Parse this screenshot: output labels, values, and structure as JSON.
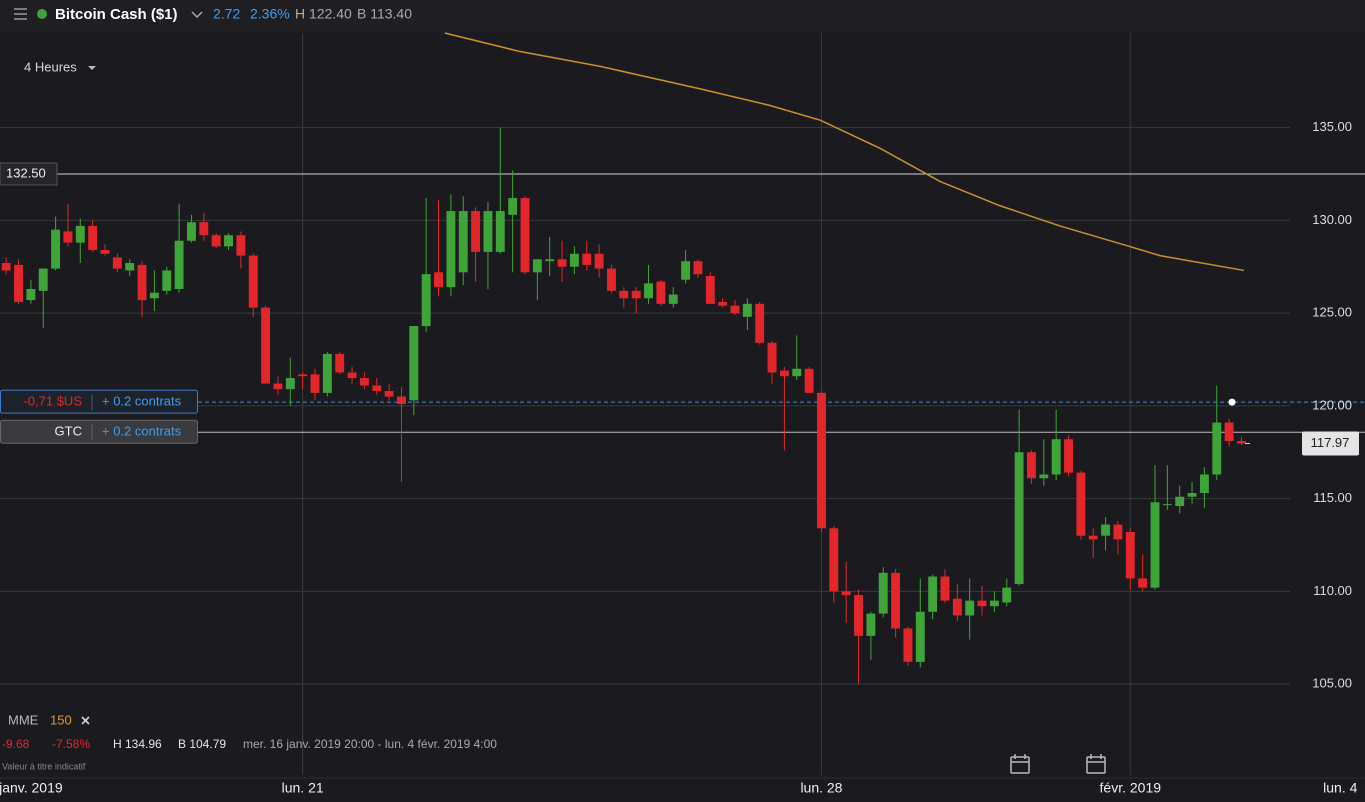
{
  "header": {
    "title": "Bitcoin Cash ($1)",
    "change": "2.72",
    "change_pct": "2.36%",
    "high": "H 122.40",
    "low": "B 113.40",
    "interval": "4 Heures"
  },
  "footer": {
    "indicator": "MME",
    "period": "150",
    "change": "-9.68",
    "change_pct": "-7.58%",
    "high": "H 134.96",
    "low": "B 104.79",
    "range": "mer. 16 janv. 2019 20:00 - lun. 4 févr. 2019 4:00",
    "note": "Valeur à titre indicatif"
  },
  "chart_data": {
    "type": "candlestick",
    "up_color": "#3fa53b",
    "down_color": "#e3262b",
    "x": [
      0,
      1,
      2,
      3,
      4,
      5,
      6,
      7,
      8,
      9,
      10,
      11,
      12,
      13,
      14,
      15,
      16,
      17,
      18,
      19,
      20,
      21,
      22,
      23,
      24,
      25,
      26,
      27,
      28,
      29,
      30,
      31,
      32,
      33,
      34,
      35,
      36,
      37,
      38,
      39,
      40,
      41,
      42,
      43,
      44,
      45,
      46,
      47,
      48,
      49,
      50,
      51,
      52,
      53,
      54,
      55,
      56,
      57,
      58,
      59,
      60,
      61,
      62,
      63,
      64,
      65,
      66,
      67,
      68,
      69,
      70,
      71,
      72,
      73,
      74,
      75,
      76,
      77,
      78,
      79,
      80,
      81,
      82,
      83,
      84,
      85,
      86,
      87,
      88,
      89,
      90,
      91,
      92,
      93,
      94,
      95,
      96,
      97,
      98,
      99,
      100
    ],
    "open": [
      127.7,
      127.6,
      125.7,
      126.2,
      127.4,
      129.4,
      128.8,
      129.7,
      128.4,
      128.0,
      127.3,
      127.6,
      125.8,
      126.2,
      126.3,
      128.9,
      129.9,
      129.2,
      128.6,
      129.2,
      128.1,
      125.3,
      121.2,
      120.9,
      121.7,
      121.7,
      120.7,
      122.8,
      121.8,
      121.5,
      121.1,
      120.8,
      120.5,
      120.3,
      124.3,
      127.2,
      126.4,
      127.2,
      130.5,
      128.3,
      128.3,
      130.3,
      131.2,
      127.2,
      127.8,
      127.9,
      127.5,
      128.2,
      128.2,
      127.4,
      126.2,
      126.2,
      125.8,
      126.7,
      125.5,
      126.8,
      127.8,
      127.0,
      125.6,
      125.4,
      124.8,
      125.5,
      123.4,
      121.9,
      121.6,
      122.0,
      120.7,
      113.4,
      110.0,
      109.8,
      107.6,
      108.8,
      111.0,
      108.0,
      106.2,
      108.9,
      110.8,
      109.6,
      108.7,
      109.5,
      109.2,
      109.4,
      110.4,
      117.5,
      116.1,
      116.3,
      118.2,
      116.4,
      113.0,
      113.0,
      113.6,
      113.2,
      110.7,
      110.2,
      114.7,
      114.6,
      115.1,
      115.3,
      116.3,
      119.1,
      118.1
    ],
    "high": [
      128.0,
      127.9,
      126.8,
      127.4,
      130.2,
      130.9,
      130.1,
      130.0,
      128.7,
      128.2,
      127.9,
      127.8,
      127.3,
      127.5,
      130.9,
      130.3,
      130.4,
      129.3,
      129.3,
      129.4,
      128.2,
      125.4,
      121.6,
      122.6,
      121.8,
      122.0,
      122.9,
      122.9,
      122.1,
      121.8,
      121.5,
      121.2,
      121.0,
      124.3,
      131.2,
      131.1,
      131.4,
      131.3,
      130.7,
      131.0,
      135.0,
      132.7,
      131.3,
      127.9,
      129.1,
      128.9,
      128.6,
      128.9,
      128.7,
      127.6,
      126.4,
      126.4,
      127.6,
      126.8,
      126.4,
      128.4,
      127.9,
      127.2,
      125.8,
      125.7,
      125.8,
      125.6,
      123.5,
      122.1,
      123.8,
      122.1,
      120.8,
      113.5,
      111.6,
      110.1,
      108.9,
      111.3,
      111.2,
      108.1,
      110.7,
      110.9,
      111.2,
      110.4,
      110.7,
      110.3,
      110.0,
      110.7,
      119.8,
      117.6,
      118.2,
      119.8,
      118.4,
      116.5,
      113.4,
      114.0,
      113.8,
      113.4,
      112.0,
      116.8,
      116.8,
      115.7,
      115.9,
      116.7,
      121.1,
      119.3,
      118.3
    ],
    "low": [
      127.1,
      125.5,
      125.5,
      124.2,
      127.3,
      128.6,
      127.7,
      128.3,
      128.1,
      127.2,
      127.0,
      124.8,
      125.1,
      126.0,
      126.1,
      128.8,
      128.9,
      128.5,
      128.4,
      127.4,
      124.8,
      121.2,
      120.6,
      120.0,
      120.9,
      120.3,
      120.5,
      121.7,
      121.2,
      120.9,
      120.6,
      120.3,
      115.9,
      119.5,
      124.0,
      125.9,
      125.9,
      126.5,
      126.7,
      126.3,
      128.2,
      127.2,
      127.1,
      125.7,
      127.0,
      126.7,
      127.1,
      127.3,
      126.9,
      126.1,
      125.3,
      125.0,
      125.5,
      125.4,
      125.3,
      126.6,
      126.9,
      125.5,
      125.3,
      124.9,
      124.1,
      123.3,
      121.2,
      117.6,
      121.4,
      120.7,
      113.2,
      109.4,
      108.3,
      105.0,
      106.3,
      108.6,
      107.5,
      106.0,
      105.9,
      108.5,
      109.4,
      108.4,
      107.4,
      108.7,
      108.9,
      109.2,
      110.3,
      115.8,
      115.7,
      116.0,
      116.2,
      112.8,
      111.8,
      112.2,
      112.0,
      110.1,
      110.0,
      110.1,
      114.4,
      114.2,
      114.7,
      114.5,
      116.0,
      117.8,
      117.9
    ],
    "close": [
      127.3,
      125.6,
      126.3,
      127.4,
      129.5,
      128.8,
      129.7,
      128.4,
      128.2,
      127.4,
      127.7,
      125.7,
      126.1,
      127.3,
      128.9,
      129.9,
      129.2,
      128.6,
      129.2,
      128.1,
      125.3,
      121.2,
      120.9,
      121.5,
      121.6,
      120.7,
      122.8,
      121.8,
      121.5,
      121.1,
      120.8,
      120.5,
      120.1,
      124.3,
      127.1,
      126.4,
      130.5,
      130.5,
      128.3,
      130.5,
      130.5,
      131.2,
      127.2,
      127.9,
      127.9,
      127.5,
      128.2,
      127.6,
      127.4,
      126.2,
      125.8,
      125.8,
      126.6,
      125.5,
      126.0,
      127.8,
      127.1,
      125.5,
      125.4,
      125.0,
      125.5,
      123.4,
      121.8,
      121.6,
      122.0,
      120.7,
      113.4,
      110.0,
      109.8,
      107.6,
      108.8,
      111.0,
      108.0,
      106.2,
      108.9,
      110.8,
      109.5,
      108.7,
      109.5,
      109.2,
      109.5,
      110.2,
      117.5,
      116.1,
      116.3,
      118.2,
      116.4,
      113.0,
      112.8,
      113.6,
      112.8,
      110.7,
      110.2,
      114.8,
      114.7,
      115.1,
      115.3,
      116.3,
      119.1,
      118.1,
      117.97
    ],
    "overlay": {
      "name": "MME",
      "color": "#c8922c",
      "x": [
        35.5,
        41.6,
        48.1,
        56.1,
        61.8,
        65.9,
        70.7,
        75.6,
        80.4,
        85.3,
        90.9,
        93.4,
        100.2
      ],
      "values": [
        140.1,
        139.1,
        138.3,
        137.1,
        136.2,
        135.4,
        133.9,
        132.1,
        130.8,
        129.7,
        128.6,
        128.1,
        127.3
      ]
    },
    "xlim": [
      -0.5,
      110
    ],
    "xticks": [
      {
        "value": 2,
        "label": "janv. 2019"
      },
      {
        "value": 24,
        "label": "lun. 21"
      },
      {
        "value": 66,
        "label": "lun. 28"
      },
      {
        "value": 91,
        "label": "févr. 2019"
      },
      {
        "value": 108,
        "label": "lun. 4"
      }
    ],
    "ylim": [
      100.1,
      140.1
    ],
    "yticks": [
      {
        "value": 105,
        "label": "105.00"
      },
      {
        "value": 110,
        "label": "110.00"
      },
      {
        "value": 115,
        "label": "115.00"
      },
      {
        "value": 120,
        "label": "120.00"
      },
      {
        "value": 125,
        "label": "125.00"
      },
      {
        "value": 130,
        "label": "130.00"
      },
      {
        "value": 135,
        "label": "135.00"
      }
    ],
    "grid": true,
    "alert_line": {
      "value": 132.5,
      "label": "132.50"
    },
    "order_line": {
      "value": 120.2,
      "pnl": "-0,71 $US",
      "qty": "+ 0.2 contrats"
    },
    "gtc_line": {
      "value": 118.58,
      "label": "GTC",
      "qty": "+ 0.2 contrats"
    },
    "last_price": 117.97
  }
}
